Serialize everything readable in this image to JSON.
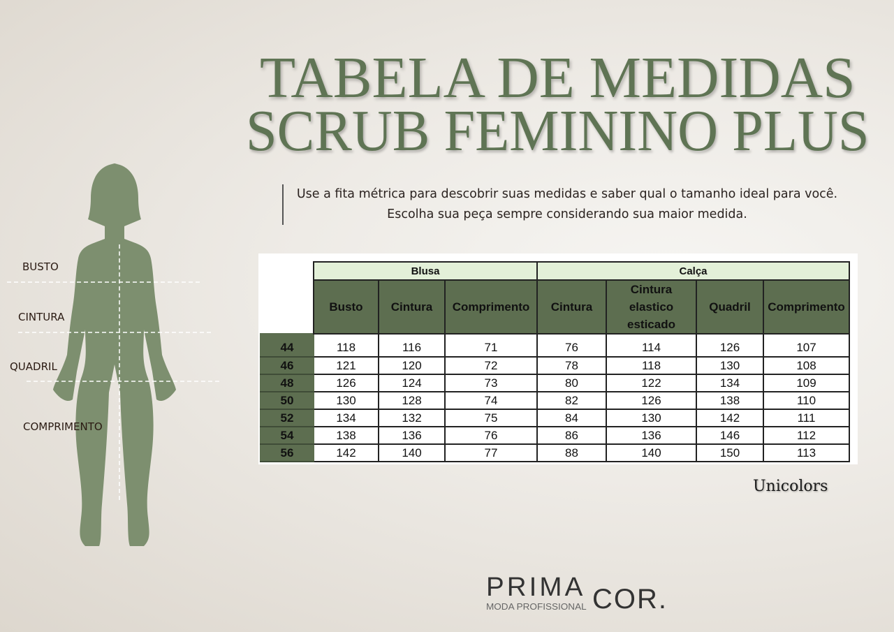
{
  "title": {
    "line1": "TABELA DE MEDIDAS",
    "line2": "SCRUB FEMININO PLUS"
  },
  "intro": "Use a fita métrica para descobrir suas medidas e saber qual o tamanho ideal para você. Escolha sua peça sempre considerando sua maior medida.",
  "figure": {
    "labels": [
      "BUSTO",
      "CINTURA",
      "QUADRIL",
      "COMPRIMENTO"
    ],
    "color": "#7d8f6f"
  },
  "table": {
    "groups": [
      "Blusa",
      "Calça"
    ],
    "columns": [
      "Busto",
      "Cintura",
      "Comprimento",
      "Cintura",
      "Cintura elastico esticado",
      "Quadril",
      "Comprimento"
    ],
    "rows": [
      {
        "size": "44",
        "values": [
          "118",
          "116",
          "71",
          "76",
          "114",
          "126",
          "107"
        ]
      },
      {
        "size": "46",
        "values": [
          "121",
          "120",
          "72",
          "78",
          "118",
          "130",
          "108"
        ]
      },
      {
        "size": "48",
        "values": [
          "126",
          "124",
          "73",
          "80",
          "122",
          "134",
          "109"
        ]
      },
      {
        "size": "50",
        "values": [
          "130",
          "128",
          "74",
          "82",
          "126",
          "138",
          "110"
        ]
      },
      {
        "size": "52",
        "values": [
          "134",
          "132",
          "75",
          "84",
          "130",
          "142",
          "111"
        ]
      },
      {
        "size": "54",
        "values": [
          "138",
          "136",
          "76",
          "86",
          "136",
          "146",
          "112"
        ]
      },
      {
        "size": "56",
        "values": [
          "142",
          "140",
          "77",
          "88",
          "140",
          "150",
          "113"
        ]
      }
    ]
  },
  "brand": "Unicolors",
  "logo": {
    "prima": "PRIMA",
    "cor": "COR.",
    "sub": "MODA PROFISSIONAL"
  }
}
